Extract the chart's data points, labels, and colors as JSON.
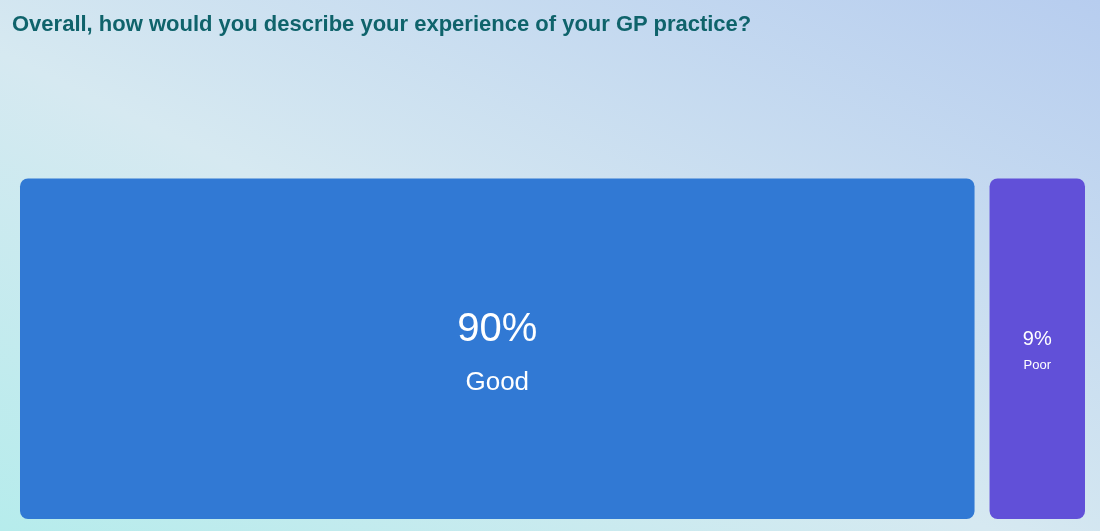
{
  "chart_data": {
    "type": "other",
    "title": "Overall, how would you describe your experience of your GP practice?",
    "categories": [
      "Good",
      "Poor"
    ],
    "values": [
      90,
      9
    ],
    "value_labels": [
      "90%",
      "9%"
    ],
    "colors": [
      "#3179d4",
      "#6150d8"
    ]
  }
}
